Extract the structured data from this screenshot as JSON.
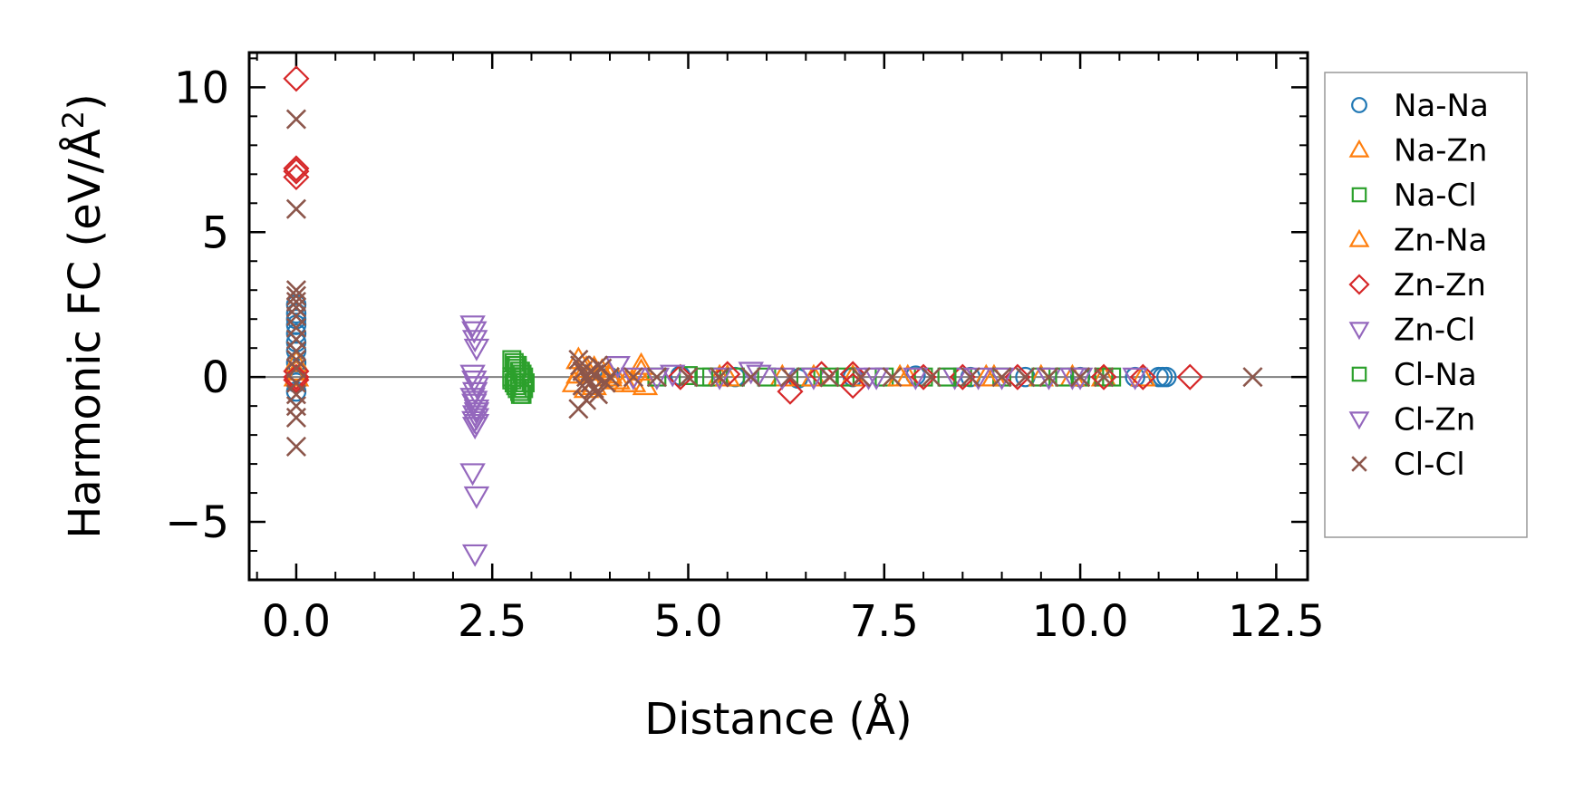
{
  "chart_data": {
    "type": "scatter",
    "title": "",
    "xlabel": "Distance (Å)",
    "ylabel": "Harmonic FC (eV/Å²)",
    "ylabel_parts": {
      "main": "Harmonic FC (eV/Å",
      "sup": "2",
      "close": ")"
    },
    "xlim": [
      -0.6,
      12.9
    ],
    "ylim": [
      -7.0,
      11.2
    ],
    "xticks": [
      0.0,
      2.5,
      5.0,
      7.5,
      10.0,
      12.5
    ],
    "xtick_labels": [
      "0.0",
      "2.5",
      "5.0",
      "7.5",
      "10.0",
      "12.5"
    ],
    "yticks": [
      -5,
      0,
      5,
      10
    ],
    "ytick_labels": [
      "−5",
      "0",
      "5",
      "10"
    ],
    "zero_line": true,
    "legend_position": "outside-right",
    "series": [
      {
        "name": "Na-Na",
        "marker": "circle",
        "color": "#1f77b4",
        "x": [
          0,
          0,
          0,
          0,
          0,
          0,
          0,
          0,
          0,
          0,
          0,
          4.0,
          4.9,
          5.6,
          6.4,
          7.1,
          7.9,
          8.6,
          9.3,
          10.0,
          10.7,
          11.0,
          11.05,
          11.1
        ],
        "y": [
          2.5,
          2.2,
          2.0,
          1.8,
          1.5,
          1.2,
          0.9,
          0.5,
          0.2,
          -0.2,
          -0.5,
          0.0,
          0.05,
          0.0,
          -0.05,
          0.0,
          0.05,
          0.0,
          0.0,
          0.0,
          0.0,
          0.0,
          0.0,
          0.0
        ]
      },
      {
        "name": "Na-Zn",
        "marker": "triangle-up",
        "color": "#ff7f0e",
        "x": [
          0,
          0,
          3.55,
          3.6,
          3.7,
          3.8,
          3.9,
          4.0,
          4.1,
          4.3,
          4.4,
          4.45,
          5.4,
          6.2,
          7.1,
          7.8,
          8.9,
          9.5,
          10.3,
          10.8
        ],
        "y": [
          0.5,
          0.2,
          -0.2,
          0.1,
          0.3,
          -0.3,
          0.2,
          0.0,
          -0.1,
          -0.2,
          0.4,
          -0.3,
          0.0,
          0.0,
          0.0,
          0.0,
          0.0,
          0.0,
          0.0,
          0.0
        ]
      },
      {
        "name": "Na-Cl",
        "marker": "square",
        "color": "#2ca02c",
        "x": [
          2.75,
          2.78,
          2.8,
          2.82,
          2.85,
          2.88,
          2.75,
          2.78,
          2.8,
          2.82,
          2.85,
          2.88,
          2.75,
          2.8,
          2.85,
          4.6,
          5.0,
          5.3,
          5.6,
          6.0,
          6.5,
          7.0,
          7.5,
          8.0,
          8.5,
          9.0,
          9.5,
          10.0,
          10.3,
          10.4
        ],
        "y": [
          0.6,
          0.5,
          0.4,
          0.3,
          0.2,
          0.1,
          -0.1,
          -0.2,
          -0.3,
          -0.4,
          -0.5,
          -0.6,
          0.0,
          0.0,
          0.0,
          0.0,
          0.05,
          0.0,
          0.0,
          0.0,
          0.0,
          0.0,
          0.0,
          0.0,
          0.0,
          0.0,
          0.0,
          0.0,
          0.0,
          0.0
        ]
      },
      {
        "name": "Zn-Na",
        "marker": "triangle-up",
        "color": "#ff7f0e",
        "x": [
          0,
          3.6,
          3.7,
          3.8,
          4.0,
          4.2,
          4.4,
          5.5,
          6.6,
          7.7,
          8.8,
          9.9
        ],
        "y": [
          0.0,
          0.6,
          -0.4,
          0.3,
          0.1,
          -0.2,
          0.2,
          0.0,
          0.0,
          0.0,
          0.0,
          0.0
        ]
      },
      {
        "name": "Zn-Zn",
        "marker": "diamond",
        "color": "#d62728",
        "x": [
          0,
          0,
          0,
          0,
          0,
          0,
          0,
          4.9,
          5.5,
          6.3,
          6.7,
          7.1,
          7.1,
          8.0,
          8.5,
          9.2,
          10.3,
          10.8,
          11.4
        ],
        "y": [
          10.3,
          7.2,
          7.1,
          6.9,
          0.2,
          0.0,
          -0.1,
          0.0,
          0.1,
          -0.5,
          0.1,
          -0.3,
          0.1,
          0.0,
          0.0,
          0.0,
          0.0,
          0.0,
          0.0
        ]
      },
      {
        "name": "Zn-Cl",
        "marker": "triangle-down",
        "color": "#9467bd",
        "x": [
          2.25,
          2.27,
          2.28,
          2.3,
          2.25,
          2.27,
          2.3,
          2.28,
          2.25,
          2.27,
          2.3,
          2.28,
          2.27,
          2.28,
          2.25,
          2.3,
          2.28,
          2.3,
          4.1,
          4.3,
          4.8,
          5.4,
          5.8,
          6.2,
          6.6,
          7.3,
          7.9,
          8.4,
          9.0,
          9.6,
          10.0
        ],
        "y": [
          1.8,
          1.6,
          1.3,
          1.0,
          0.1,
          -0.1,
          -0.3,
          -0.5,
          -0.7,
          -0.9,
          -1.1,
          -1.3,
          -1.5,
          -1.7,
          -3.3,
          -4.1,
          -6.1,
          -1.4,
          0.4,
          0.0,
          0.1,
          0.0,
          0.2,
          0.0,
          0.0,
          0.0,
          0.0,
          0.0,
          0.0,
          0.0,
          0.0
        ]
      },
      {
        "name": "Cl-Na",
        "marker": "square",
        "color": "#2ca02c",
        "x": [
          2.82,
          2.86,
          2.9,
          2.92,
          2.9,
          2.86,
          5.2,
          6.8,
          8.3,
          9.8
        ],
        "y": [
          0.4,
          0.2,
          0.0,
          -0.2,
          -0.4,
          -0.6,
          0.0,
          0.0,
          0.0,
          0.0
        ]
      },
      {
        "name": "Cl-Zn",
        "marker": "triangle-down",
        "color": "#9467bd",
        "x": [
          2.3,
          2.28,
          2.3,
          4.6,
          5.9,
          7.4,
          8.7,
          9.9,
          10.7
        ],
        "y": [
          -1.2,
          -0.8,
          -1.6,
          0.0,
          0.1,
          0.0,
          0.0,
          0.0,
          0.0
        ]
      },
      {
        "name": "Cl-Cl",
        "marker": "x",
        "color": "#8c564b",
        "x": [
          0,
          0,
          0,
          0,
          0,
          0,
          0,
          0,
          0,
          0,
          0,
          0,
          0,
          0,
          0,
          0,
          0,
          3.6,
          3.62,
          3.65,
          3.7,
          3.75,
          3.8,
          3.85,
          3.9,
          3.6,
          3.7,
          3.8,
          3.65,
          3.75,
          3.85,
          3.95,
          4.0,
          4.3,
          4.6,
          5.0,
          5.4,
          5.8,
          6.3,
          6.8,
          7.2,
          7.6,
          8.1,
          8.6,
          9.0,
          9.3,
          9.6,
          10.0,
          10.3,
          12.2
        ],
        "y": [
          8.9,
          5.8,
          3.0,
          2.8,
          2.6,
          2.4,
          2.1,
          1.7,
          1.3,
          0.9,
          0.6,
          0.3,
          -0.2,
          -0.6,
          -1.0,
          -1.4,
          -2.4,
          0.6,
          0.4,
          0.2,
          0.0,
          -0.2,
          -0.4,
          -0.6,
          0.3,
          -1.1,
          -0.8,
          0.1,
          -0.3,
          0.2,
          0.4,
          -0.2,
          0.0,
          0.0,
          0.0,
          0.0,
          0.0,
          0.0,
          0.0,
          0.0,
          0.0,
          0.0,
          0.0,
          0.0,
          0.0,
          0.0,
          0.0,
          0.0,
          0.0,
          0.0
        ]
      }
    ]
  }
}
